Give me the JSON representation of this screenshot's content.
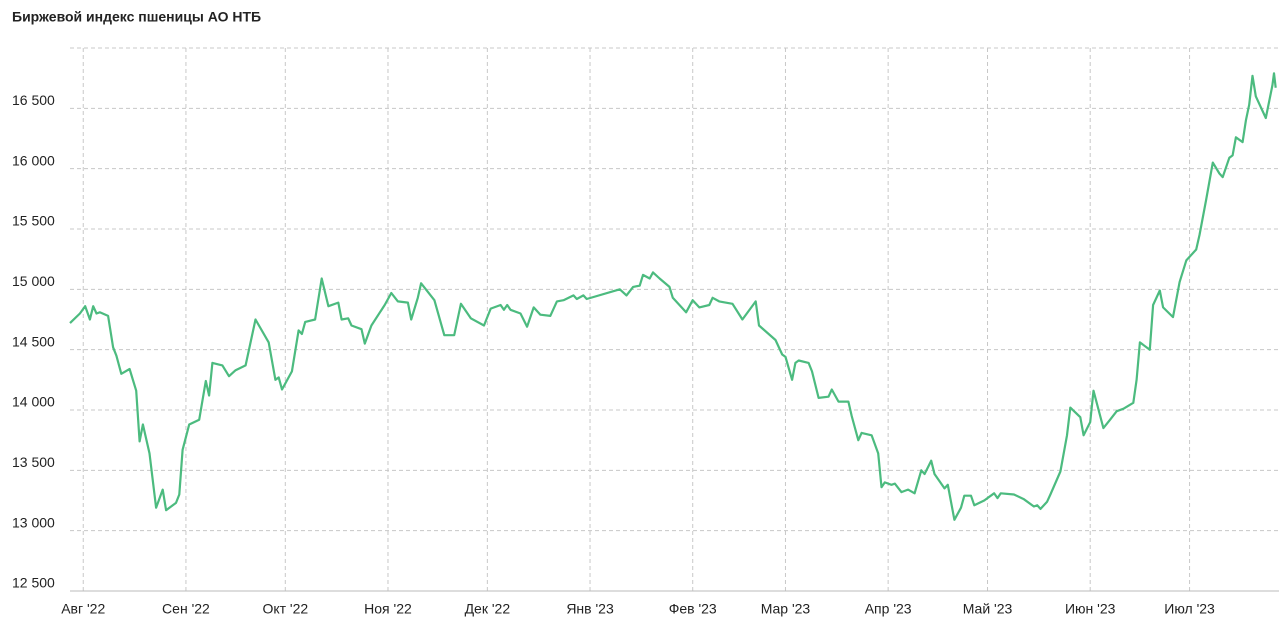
{
  "chart_data": {
    "type": "line",
    "title": "Биржевой индекс пшеницы АО НТБ",
    "x": [
      -4,
      -1,
      0.6,
      2,
      3,
      4,
      5,
      7.5,
      9,
      10,
      11.5,
      14,
      16,
      17,
      18,
      20,
      22,
      24,
      25,
      28,
      29,
      30,
      32,
      35,
      37,
      38,
      39,
      42,
      44,
      46,
      49,
      52,
      56,
      58,
      59,
      60,
      63,
      65,
      66,
      67,
      70,
      72,
      74,
      77,
      78,
      80,
      81,
      84,
      85,
      87,
      91,
      93,
      95,
      98,
      99,
      101,
      102,
      106,
      109,
      112,
      114,
      117,
      121,
      123,
      126,
      127,
      128,
      129,
      132,
      134,
      136,
      138,
      141,
      143,
      145,
      148,
      149,
      151,
      152,
      162,
      164,
      166,
      168,
      169,
      171,
      172,
      174,
      177,
      178,
      182,
      184,
      186,
      189,
      190,
      192,
      196,
      199,
      203,
      204,
      209,
      211,
      212,
      214,
      215,
      216,
      219,
      220,
      222,
      225,
      226,
      228,
      231,
      232,
      234,
      235,
      238,
      240,
      241,
      242,
      244,
      245,
      247,
      249,
      251,
      253,
      254,
      256,
      257,
      260,
      261,
      263,
      265,
      266,
      268,
      269,
      272,
      275,
      276,
      277,
      281,
      284,
      287,
      288,
      289,
      291,
      292,
      295,
      297,
      298,
      301,
      302,
      304,
      305,
      308,
      310,
      312,
      314,
      317,
      318,
      319,
      322,
      323,
      325,
      326,
      329,
      331,
      333,
      336,
      337,
      339,
      341,
      343,
      344,
      346,
      347,
      348,
      350,
      351,
      352,
      353,
      354,
      357,
      359,
      359.5,
      360
    ],
    "series": [
      {
        "name": "Биржевой индекс",
        "color": "#4cbb7f",
        "values": [
          14720,
          14800,
          14860,
          14750,
          14860,
          14800,
          14810,
          14780,
          14520,
          14450,
          14300,
          14340,
          14160,
          13740,
          13880,
          13640,
          13190,
          13340,
          13170,
          13230,
          13300,
          13670,
          13880,
          13920,
          14240,
          14120,
          14390,
          14370,
          14280,
          14330,
          14370,
          14750,
          14560,
          14250,
          14270,
          14170,
          14320,
          14660,
          14630,
          14730,
          14750,
          15090,
          14860,
          14890,
          14750,
          14760,
          14700,
          14670,
          14550,
          14700,
          14870,
          14970,
          14900,
          14890,
          14750,
          14930,
          15050,
          14910,
          14620,
          14620,
          14880,
          14760,
          14700,
          14840,
          14870,
          14830,
          14870,
          14830,
          14800,
          14690,
          14850,
          14790,
          14780,
          14900,
          14910,
          14950,
          14920,
          14950,
          14920,
          15000,
          14950,
          15020,
          15030,
          15120,
          15090,
          15140,
          15090,
          15020,
          14930,
          14810,
          14910,
          14850,
          14870,
          14930,
          14900,
          14880,
          14750,
          14900,
          14700,
          14580,
          14460,
          14440,
          14250,
          14390,
          14410,
          14390,
          14320,
          14100,
          14110,
          14170,
          14070,
          14070,
          13950,
          13750,
          13810,
          13790,
          13640,
          13360,
          13400,
          13380,
          13390,
          13320,
          13340,
          13310,
          13500,
          13470,
          13580,
          13470,
          13350,
          13380,
          13090,
          13190,
          13290,
          13290,
          13210,
          13250,
          13310,
          13270,
          13310,
          13300,
          13260,
          13200,
          13210,
          13180,
          13240,
          13300,
          13490,
          13790,
          14020,
          13940,
          13790,
          13900,
          14160,
          13850,
          13920,
          13990,
          14010,
          14060,
          14250,
          14560,
          14500,
          14870,
          14990,
          14850,
          14770,
          15060,
          15240,
          15330,
          15450,
          15740,
          16050,
          15960,
          15930,
          16090,
          16110,
          16260,
          16220,
          16400,
          16530,
          16770,
          16600,
          16420,
          16690,
          16790,
          16670
        ]
      }
    ],
    "xlim": [
      -4,
      361
    ],
    "xticks": [
      {
        "value": 0,
        "label": "Авг '22"
      },
      {
        "value": 31,
        "label": "Сен '22"
      },
      {
        "value": 61,
        "label": "Окт '22"
      },
      {
        "value": 92,
        "label": "Ноя '22"
      },
      {
        "value": 122,
        "label": "Дек '22"
      },
      {
        "value": 153,
        "label": "Янв '23"
      },
      {
        "value": 184,
        "label": "Фев '23"
      },
      {
        "value": 212,
        "label": "Мар '23"
      },
      {
        "value": 243,
        "label": "Апр '23"
      },
      {
        "value": 273,
        "label": "Май '23"
      },
      {
        "value": 304,
        "label": "Июн '23"
      },
      {
        "value": 334,
        "label": "Июл '23"
      }
    ],
    "ylim": [
      12500,
      17000
    ],
    "yticks": [
      {
        "value": 12500,
        "label": "12 500"
      },
      {
        "value": 13000,
        "label": "13 000"
      },
      {
        "value": 13500,
        "label": "13 500"
      },
      {
        "value": 14000,
        "label": "14 000"
      },
      {
        "value": 14500,
        "label": "14 500"
      },
      {
        "value": 15000,
        "label": "15 000"
      },
      {
        "value": 15500,
        "label": "15 500"
      },
      {
        "value": 16000,
        "label": "16 000"
      },
      {
        "value": 16500,
        "label": "16 500"
      }
    ],
    "grid": true
  }
}
